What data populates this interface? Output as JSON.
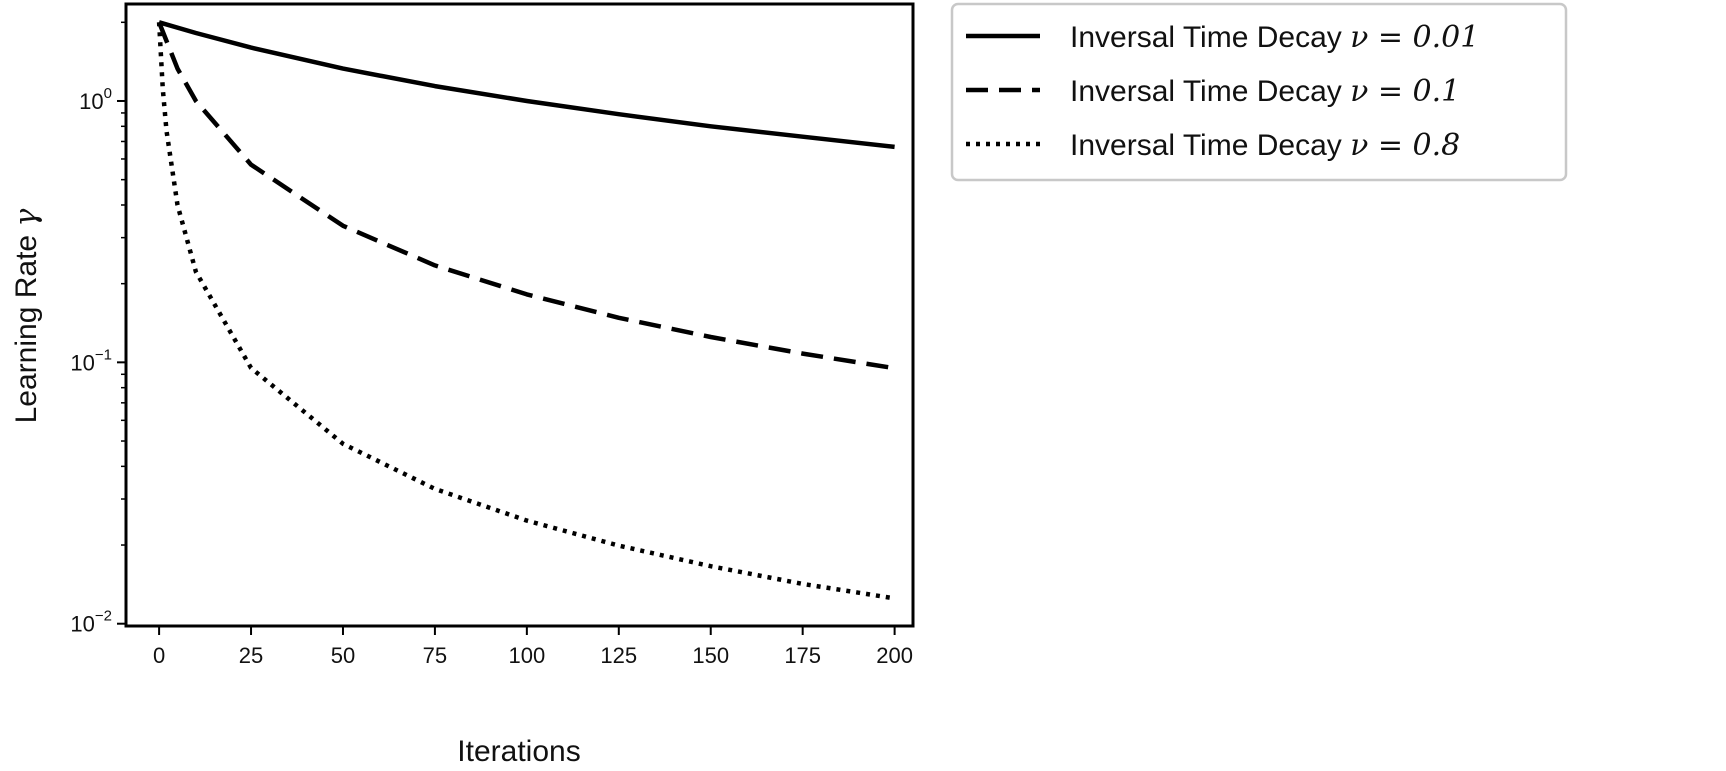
{
  "chart_data": {
    "type": "line",
    "title": "",
    "xlabel": "Iterations",
    "ylabel": "Learning Rate",
    "ylabel_symbol": "γ",
    "yscale": "log",
    "xlim": [
      -9,
      205
    ],
    "ylim": [
      0.0098,
      2.35
    ],
    "xticks": [
      0,
      25,
      50,
      75,
      100,
      125,
      150,
      175,
      200
    ],
    "x_tick_labels": [
      "0",
      "25",
      "50",
      "75",
      "100",
      "125",
      "150",
      "175",
      "200"
    ],
    "y_tick_labels": [
      {
        "base": "10",
        "exp": "0",
        "value": 1
      },
      {
        "base": "10",
        "exp": "−1",
        "value": 0.1
      },
      {
        "base": "10",
        "exp": "−2",
        "value": 0.01
      }
    ],
    "grid": false,
    "legend_position": "outside-top-right",
    "series": [
      {
        "name": "Inversal Time Decay ν = 0.01",
        "label_text": "Inversal Time Decay",
        "label_math": "ν = 0.01",
        "style": "solid",
        "x": [
          0,
          10,
          25,
          50,
          75,
          100,
          125,
          150,
          175,
          200
        ],
        "y": [
          2.0,
          1.82,
          1.6,
          1.33,
          1.14,
          1.0,
          0.89,
          0.8,
          0.73,
          0.667
        ]
      },
      {
        "name": "Inversal Time  Decay ν = 0.1",
        "label_text": "Inversal Time  Decay",
        "label_math": "ν = 0.1",
        "style": "dashed",
        "x": [
          0,
          5,
          10,
          25,
          50,
          75,
          100,
          125,
          150,
          175,
          200
        ],
        "y": [
          2.0,
          1.33,
          1.0,
          0.571,
          0.333,
          0.235,
          0.182,
          0.148,
          0.125,
          0.108,
          0.095
        ]
      },
      {
        "name": "Inversal Time  Decay ν = 0.8",
        "label_text": "Inversal Time  Decay",
        "label_math": "ν = 0.8",
        "style": "dotted",
        "x": [
          0,
          1,
          2,
          5,
          10,
          25,
          50,
          75,
          100,
          125,
          150,
          175,
          200
        ],
        "y": [
          2.0,
          1.11,
          0.769,
          0.4,
          0.222,
          0.0952,
          0.0488,
          0.0328,
          0.0248,
          0.0199,
          0.0166,
          0.0142,
          0.0125
        ]
      }
    ],
    "colors": {
      "line": "#000000",
      "frame": "#000000",
      "legend_border": "#c8c8c8"
    }
  }
}
